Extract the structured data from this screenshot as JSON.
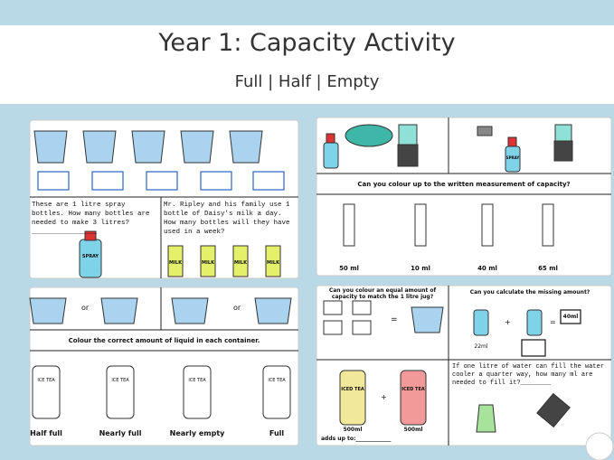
{
  "header": {
    "title": "Year 1: Capacity Activity",
    "subtitle": "Full | Half | Empty"
  },
  "sheet1": {
    "question1": "These are 1 litre spray bottles. How many bottles are needed to make 3 litres? ________________",
    "question2": "Mr. Ripley and his family use 1 bottle of Daisy's milk a day. How many bottles will they have used in a week?",
    "spray_label": "SPRAY",
    "milk_labels": [
      "MILK",
      "MILK",
      "MILK",
      "MILK"
    ]
  },
  "sheet2": {
    "instruction": "Can you colour up to the written measurement of capacity?",
    "spray_label": "SPRAY",
    "labels": [
      "50 ml",
      "10 ml",
      "40 ml",
      "65 ml"
    ]
  },
  "sheet3": {
    "or_labels": [
      "or",
      "or"
    ],
    "instruction": "Colour the correct amount of liquid in each container.",
    "bottle_labels": [
      "ICE TEA",
      "ICE TEA",
      "ICE TEA",
      "ICE TEA"
    ],
    "captions": [
      "Half full",
      "Nearly full",
      "Nearly empty",
      "Full"
    ]
  },
  "sheet4": {
    "question1": "Can you colour an equal amount of capacity to match the 1 litre jug?",
    "equals": "=",
    "question2": "Can you calculate the missing amount?",
    "plus": "+",
    "equals2": "=",
    "answer": "40ml",
    "known": "22ml",
    "tea_labels": [
      "ICED TEA",
      "ICED TEA"
    ],
    "plus2": "+",
    "volumes": [
      "500ml",
      "500ml"
    ],
    "adds_up": "adds up to:_____________",
    "question3": "If one litre of water can fill the water cooler a quarter way, how many ml are needed to fill it?________"
  }
}
